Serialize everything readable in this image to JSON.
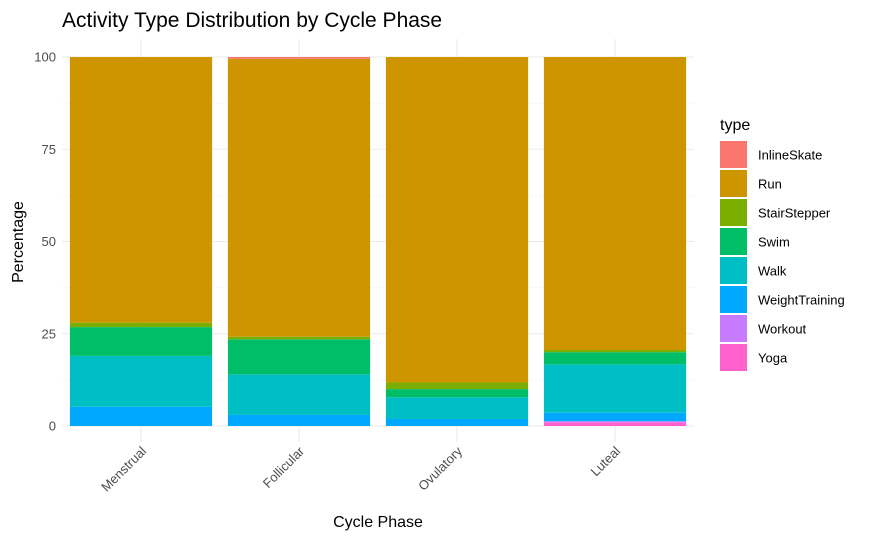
{
  "chart_data": {
    "type": "bar",
    "stacked": true,
    "title": "Activity Type Distribution by Cycle Phase",
    "xlabel": "Cycle Phase",
    "ylabel": "Percentage",
    "ylim": [
      0,
      100
    ],
    "yticks": [
      0,
      25,
      50,
      75,
      100
    ],
    "categories": [
      "Menstrual",
      "Follicular",
      "Ovulatory",
      "Luteal"
    ],
    "legend_title": "type",
    "legend_position": "right",
    "grid": true,
    "series": [
      {
        "name": "InlineSkate",
        "color": "#F8766D",
        "values": [
          0.0,
          0.5,
          0.0,
          0.0
        ]
      },
      {
        "name": "Run",
        "color": "#CD9600",
        "values": [
          72.0,
          75.3,
          88.2,
          79.4
        ]
      },
      {
        "name": "StairStepper",
        "color": "#7CAE00",
        "values": [
          1.2,
          0.7,
          1.8,
          0.6
        ]
      },
      {
        "name": "Swim",
        "color": "#00BE67",
        "values": [
          7.8,
          9.5,
          2.2,
          3.3
        ]
      },
      {
        "name": "Walk",
        "color": "#00BFC4",
        "values": [
          13.8,
          11.0,
          5.9,
          13.1
        ]
      },
      {
        "name": "WeightTraining",
        "color": "#00A9FF",
        "values": [
          5.2,
          3.0,
          1.9,
          2.3
        ]
      },
      {
        "name": "Workout",
        "color": "#C77CFF",
        "values": [
          0.0,
          0.0,
          0.0,
          0.3
        ]
      },
      {
        "name": "Yoga",
        "color": "#FF61CC",
        "values": [
          0.0,
          0.0,
          0.0,
          1.0
        ]
      }
    ]
  }
}
